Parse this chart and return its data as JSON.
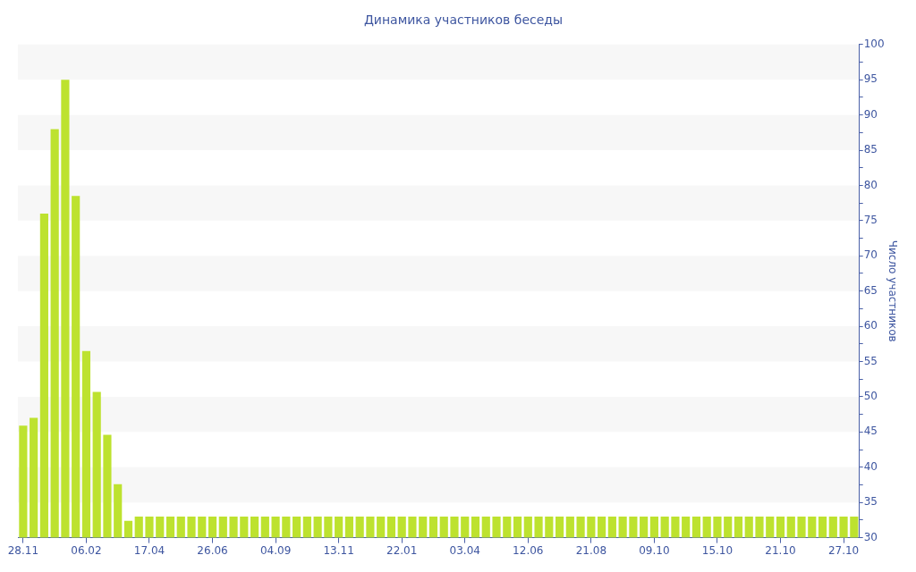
{
  "chart_data": {
    "type": "bar",
    "title": "Динамика участников беседы",
    "ylabel": "Число участников",
    "categories": [
      "28.11",
      null,
      null,
      null,
      null,
      null,
      "06.02",
      null,
      null,
      null,
      null,
      null,
      "17.04",
      null,
      null,
      null,
      null,
      null,
      "26.06",
      null,
      null,
      null,
      null,
      null,
      "04.09",
      null,
      null,
      null,
      null,
      null,
      "13.11",
      null,
      null,
      null,
      null,
      null,
      "22.01",
      null,
      null,
      null,
      null,
      null,
      "03.04",
      null,
      null,
      null,
      null,
      null,
      "12.06",
      null,
      null,
      null,
      null,
      null,
      "21.08",
      null,
      null,
      null,
      null,
      null,
      "09.10",
      null,
      null,
      null,
      null,
      null,
      "15.10",
      null,
      null,
      null,
      null,
      null,
      "21.10",
      null,
      null,
      null,
      null,
      null,
      "27.10",
      null
    ],
    "values": [
      45.9,
      47,
      76,
      88,
      95,
      78.5,
      56.5,
      50.7,
      44.6,
      37.6,
      32.4,
      33,
      33,
      33,
      33,
      33,
      33,
      33,
      33,
      33,
      33,
      33,
      33,
      33,
      33,
      33,
      33,
      33,
      33,
      33,
      33,
      33,
      33,
      33,
      33,
      33,
      33,
      33,
      33,
      33,
      33,
      33,
      33,
      33,
      33,
      33,
      33,
      33,
      33,
      33,
      33,
      33,
      33,
      33,
      33,
      33,
      33,
      33,
      33,
      33,
      33,
      33,
      33,
      33,
      33,
      33,
      33,
      33,
      33,
      33,
      33,
      33,
      33,
      33,
      33,
      33,
      33,
      33,
      33,
      33
    ],
    "color": "#bde22f",
    "ylim": [
      30,
      100
    ],
    "yticks": [
      30,
      {
        "value": 32.5,
        "label": null
      },
      35,
      {
        "value": 37.5,
        "label": null
      },
      40,
      {
        "value": 42.5,
        "label": null
      },
      45,
      {
        "value": 47.5,
        "label": null
      },
      50,
      {
        "value": 52.5,
        "label": null
      },
      55,
      {
        "value": 57.5,
        "label": null
      },
      60,
      {
        "value": 62.5,
        "label": null
      },
      65,
      {
        "value": 67.5,
        "label": null
      },
      70,
      {
        "value": 72.5,
        "label": null
      },
      75,
      {
        "value": 77.5,
        "label": null
      },
      80,
      {
        "value": 82.5,
        "label": null
      },
      85,
      {
        "value": 87.5,
        "label": null
      },
      90,
      {
        "value": 92.5,
        "label": null
      },
      95,
      {
        "value": 97.5,
        "label": null
      },
      100
    ],
    "bands": [
      {
        "axis": "y",
        "from": 35,
        "to": 40,
        "color": "#f7f7f7"
      },
      {
        "axis": "y",
        "from": 45,
        "to": 50,
        "color": "#f7f7f7"
      },
      {
        "axis": "y",
        "from": 55,
        "to": 60,
        "color": "#f7f7f7"
      },
      {
        "axis": "y",
        "from": 65,
        "to": 70,
        "color": "#f7f7f7"
      },
      {
        "axis": "y",
        "from": 75,
        "to": 80,
        "color": "#f7f7f7"
      },
      {
        "axis": "y",
        "from": 85,
        "to": 90,
        "color": "#f7f7f7"
      },
      {
        "axis": "y",
        "from": 95,
        "to": 100,
        "color": "#f7f7f7"
      }
    ]
  }
}
